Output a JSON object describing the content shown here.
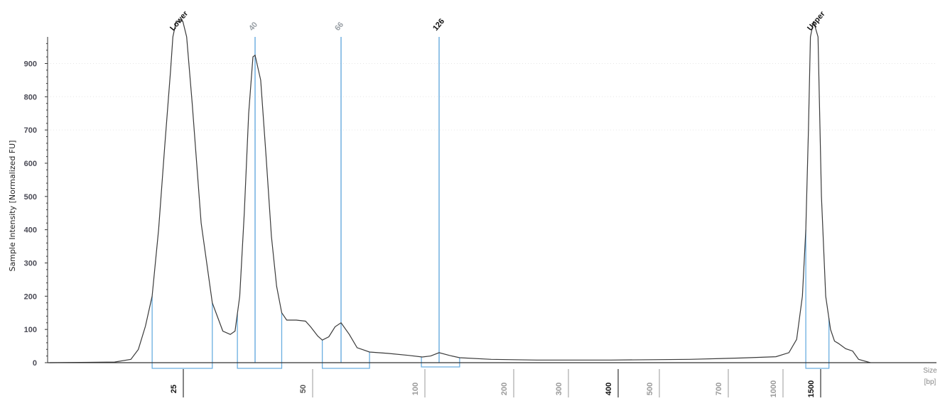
{
  "chart_data": {
    "type": "line",
    "ylabel": "Sample Intensity [Normalized FU]",
    "xlabel_line1": "Size",
    "xlabel_line2": "[bp]",
    "ylim": [
      0,
      980
    ],
    "yticks": [
      "0",
      "100",
      "200",
      "300",
      "400",
      "500",
      "600",
      "700",
      "800",
      "900"
    ],
    "xticks": [
      {
        "label": "25",
        "bp": 25,
        "color": "#111111"
      },
      {
        "label": "50",
        "bp": 50,
        "color": "#555555"
      },
      {
        "label": "100",
        "bp": 100,
        "color": "#999999"
      },
      {
        "label": "200",
        "bp": 200,
        "color": "#999999"
      },
      {
        "label": "300",
        "bp": 300,
        "color": "#999999"
      },
      {
        "label": "400",
        "bp": 400,
        "color": "#111111"
      },
      {
        "label": "500",
        "bp": 500,
        "color": "#999999"
      },
      {
        "label": "700",
        "bp": 700,
        "color": "#999999"
      },
      {
        "label": "1000",
        "bp": 1000,
        "color": "#999999"
      },
      {
        "label": "1500",
        "bp": 1500,
        "color": "#111111"
      }
    ],
    "peaks": [
      {
        "label": "Lower",
        "bp": 25,
        "color": "#111111",
        "marker": false,
        "region_bp": [
          21,
          31
        ]
      },
      {
        "label": "40",
        "bp": 40,
        "color": "#9aa0a6",
        "marker": true,
        "region_bp": [
          36,
          45
        ]
      },
      {
        "label": "66",
        "bp": 66,
        "color": "#9aa0a6",
        "marker": true,
        "region_bp": [
          57,
          77
        ]
      },
      {
        "label": "126",
        "bp": 126,
        "color": "#111111",
        "marker": true,
        "region_bp": [
          104,
          145
        ]
      },
      {
        "label": "Upper",
        "bp": 1500,
        "color": "#111111",
        "marker": false,
        "region_bp": [
          1380,
          1680
        ]
      }
    ],
    "series": [
      {
        "trace": [
          [
            10,
            0
          ],
          [
            16,
            2
          ],
          [
            18,
            10
          ],
          [
            19,
            40
          ],
          [
            20,
            110
          ],
          [
            21,
            200
          ],
          [
            22,
            400
          ],
          [
            23,
            650
          ],
          [
            24,
            880
          ],
          [
            24.4,
            980
          ],
          [
            25,
            1200
          ],
          [
            26,
            1150
          ],
          [
            26.6,
            980
          ],
          [
            27.5,
            780
          ],
          [
            29,
            420
          ],
          [
            31,
            180
          ],
          [
            33,
            95
          ],
          [
            34.5,
            85
          ],
          [
            35.5,
            95
          ],
          [
            36.5,
            200
          ],
          [
            37.5,
            450
          ],
          [
            38.5,
            750
          ],
          [
            39.5,
            920
          ],
          [
            40,
            925
          ],
          [
            41,
            850
          ],
          [
            42,
            620
          ],
          [
            43,
            380
          ],
          [
            44,
            230
          ],
          [
            45,
            150
          ],
          [
            46,
            128
          ],
          [
            48,
            128
          ],
          [
            50,
            125
          ],
          [
            52,
            108
          ],
          [
            55,
            80
          ],
          [
            57,
            68
          ],
          [
            60,
            78
          ],
          [
            63,
            108
          ],
          [
            66,
            120
          ],
          [
            69,
            85
          ],
          [
            72,
            45
          ],
          [
            77,
            32
          ],
          [
            85,
            28
          ],
          [
            95,
            22
          ],
          [
            105,
            17
          ],
          [
            115,
            20
          ],
          [
            126,
            30
          ],
          [
            135,
            22
          ],
          [
            145,
            15
          ],
          [
            180,
            10
          ],
          [
            250,
            8
          ],
          [
            400,
            8
          ],
          [
            600,
            10
          ],
          [
            800,
            14
          ],
          [
            1000,
            18
          ],
          [
            1150,
            30
          ],
          [
            1250,
            70
          ],
          [
            1330,
            200
          ],
          [
            1380,
            400
          ],
          [
            1420,
            700
          ],
          [
            1450,
            980
          ],
          [
            1500,
            1200
          ],
          [
            1550,
            980
          ],
          [
            1590,
            500
          ],
          [
            1640,
            200
          ],
          [
            1700,
            100
          ],
          [
            1750,
            65
          ],
          [
            1800,
            58
          ],
          [
            1900,
            42
          ],
          [
            2000,
            35
          ],
          [
            2020,
            10
          ],
          [
            2060,
            0
          ]
        ]
      }
    ]
  }
}
